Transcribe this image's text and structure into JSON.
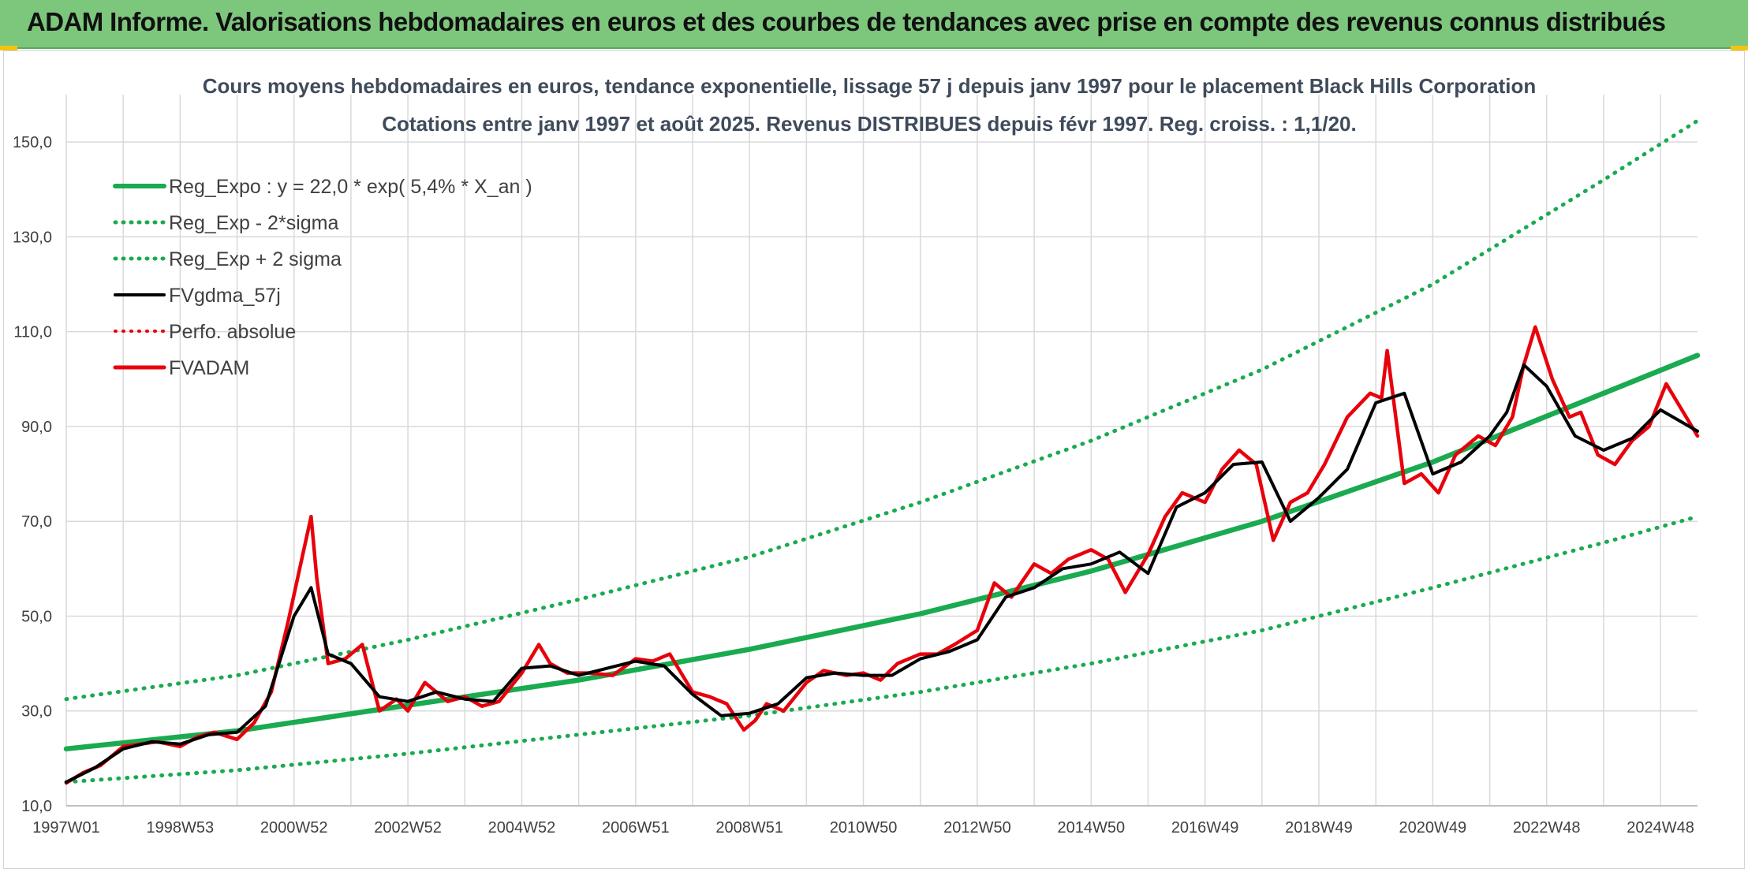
{
  "header": {
    "title": "ADAM Informe. Valorisations hebdomadaires en euros et des courbes de tendances avec prise en compte des revenus connus distribués"
  },
  "colors": {
    "banner": "#7dc77d",
    "trend": "#1aaa50",
    "price": "#e8000b",
    "average": "#000000",
    "grid": "#d9d9d9"
  },
  "chart_data": {
    "type": "line",
    "title_line1": "Cours moyens hebdomadaires en euros, tendance exponentielle, lissage 57 j depuis janv 1997 pour le placement Black Hills Corporation",
    "title_line2": "Cotations entre janv 1997 et août 2025. Revenus DISTRIBUES depuis févr 1997. Reg. croiss. : 1,1/20.",
    "xlabel": "",
    "ylabel": "",
    "xlim": [
      1997.0,
      2025.65
    ],
    "ylim": [
      10,
      160
    ],
    "yticks": [
      10,
      30,
      50,
      70,
      90,
      110,
      130,
      150
    ],
    "ytick_labels": [
      "10,0",
      "30,0",
      "50,0",
      "70,0",
      "90,0",
      "110,0",
      "130,0",
      "150,0"
    ],
    "xtick_labels": [
      "1997W01",
      "1998W53",
      "2000W52",
      "2002W52",
      "2004W52",
      "2006W51",
      "2008W51",
      "2010W50",
      "2012W50",
      "2014W50",
      "2016W49",
      "2018W49",
      "2020W49",
      "2022W48",
      "2024W48"
    ],
    "xtick_years": [
      1997.0,
      1999.0,
      2001.0,
      2003.0,
      2005.0,
      2007.0,
      2009.0,
      2011.0,
      2013.0,
      2015.0,
      2017.0,
      2019.0,
      2021.0,
      2023.0,
      2025.0
    ],
    "grid": true,
    "legend_position": "top-left",
    "legend": [
      {
        "label": "Reg_Expo : y = 22,0 * exp( 5,4% *  X_an )",
        "color": "#1aaa50",
        "style": "solid",
        "width": 6
      },
      {
        "label": "Reg_Exp - 2*sigma",
        "color": "#1aaa50",
        "style": "dotted",
        "width": 4
      },
      {
        "label": "Reg_Exp + 2 sigma",
        "color": "#1aaa50",
        "style": "dotted",
        "width": 4
      },
      {
        "label": "FVgdma_57j",
        "color": "#000000",
        "style": "solid",
        "width": 4
      },
      {
        "label": "Perfo. absolue",
        "color": "#e8000b",
        "style": "dotted",
        "width": 3
      },
      {
        "label": "FVADAM",
        "color": "#e8000b",
        "style": "solid",
        "width": 5
      }
    ],
    "series": [
      {
        "name": "Reg_Expo : y = 22,0 * exp( 5,4% *  X_an )",
        "style": "solid",
        "color": "#1aaa50",
        "x": [
          1997.0,
          2000.0,
          2003.0,
          2006.0,
          2009.0,
          2012.0,
          2015.0,
          2018.0,
          2021.0,
          2024.0,
          2025.65
        ],
        "y": [
          22.0,
          25.8,
          31.2,
          36.5,
          43.0,
          50.5,
          59.5,
          70.0,
          82.5,
          97.0,
          105.0
        ]
      },
      {
        "name": "Reg_Exp - 2*sigma",
        "style": "dotted",
        "color": "#1aaa50",
        "x": [
          1997.0,
          2000.0,
          2003.0,
          2006.0,
          2009.0,
          2012.0,
          2015.0,
          2018.0,
          2021.0,
          2024.0,
          2025.65
        ],
        "y": [
          15.0,
          17.5,
          21.0,
          25.0,
          29.0,
          34.0,
          40.0,
          47.0,
          56.0,
          65.5,
          71.0
        ]
      },
      {
        "name": "Reg_Exp + 2 sigma",
        "style": "dotted",
        "color": "#1aaa50",
        "x": [
          1997.0,
          2000.0,
          2003.0,
          2006.0,
          2009.0,
          2012.0,
          2015.0,
          2018.0,
          2021.0,
          2024.0,
          2025.65
        ],
        "y": [
          32.5,
          37.5,
          45.0,
          53.5,
          62.5,
          74.0,
          87.0,
          102.0,
          120.0,
          142.0,
          154.5
        ]
      },
      {
        "name": "FVgdma_57j",
        "style": "solid",
        "color": "#000000",
        "x": [
          1997.0,
          1997.5,
          1998.0,
          1998.5,
          1999.0,
          1999.5,
          2000.0,
          2000.5,
          2001.0,
          2001.3,
          2001.6,
          2002.0,
          2002.5,
          2003.0,
          2003.5,
          2004.0,
          2004.5,
          2005.0,
          2005.5,
          2006.0,
          2006.5,
          2007.0,
          2007.5,
          2008.0,
          2008.5,
          2009.0,
          2009.5,
          2010.0,
          2010.5,
          2011.0,
          2011.5,
          2012.0,
          2012.5,
          2013.0,
          2013.5,
          2014.0,
          2014.5,
          2015.0,
          2015.5,
          2016.0,
          2016.5,
          2017.0,
          2017.5,
          2018.0,
          2018.5,
          2019.0,
          2019.5,
          2020.0,
          2020.5,
          2021.0,
          2021.5,
          2022.0,
          2022.3,
          2022.6,
          2023.0,
          2023.5,
          2024.0,
          2024.5,
          2025.0,
          2025.65
        ],
        "y": [
          15.0,
          18.0,
          22.0,
          23.5,
          23.0,
          25.0,
          25.5,
          31.0,
          50.0,
          56.0,
          42.0,
          40.0,
          33.0,
          32.0,
          34.0,
          32.5,
          32.0,
          39.0,
          39.5,
          37.5,
          39.0,
          40.5,
          39.5,
          33.5,
          29.0,
          29.5,
          31.5,
          37.0,
          38.0,
          37.5,
          37.5,
          41.0,
          42.5,
          45.0,
          54.0,
          56.0,
          60.0,
          61.0,
          63.5,
          59.0,
          73.0,
          76.0,
          82.0,
          82.5,
          70.0,
          75.0,
          81.0,
          95.0,
          97.0,
          80.0,
          82.5,
          88.0,
          93.0,
          103.0,
          98.5,
          88.0,
          85.0,
          87.5,
          93.5,
          89.0
        ]
      },
      {
        "name": "FVADAM",
        "style": "solid",
        "color": "#e8000b",
        "x": [
          1997.0,
          1997.3,
          1997.6,
          1998.0,
          1998.3,
          1998.6,
          1999.0,
          1999.3,
          1999.6,
          2000.0,
          2000.3,
          2000.6,
          2000.9,
          2001.1,
          2001.3,
          2001.4,
          2001.6,
          2001.9,
          2002.2,
          2002.5,
          2002.8,
          2003.0,
          2003.3,
          2003.7,
          2004.0,
          2004.3,
          2004.6,
          2005.0,
          2005.3,
          2005.5,
          2005.8,
          2006.2,
          2006.6,
          2007.0,
          2007.3,
          2007.6,
          2008.0,
          2008.3,
          2008.6,
          2008.9,
          2009.1,
          2009.3,
          2009.6,
          2010.0,
          2010.3,
          2010.7,
          2011.0,
          2011.3,
          2011.6,
          2012.0,
          2012.3,
          2012.6,
          2013.0,
          2013.3,
          2013.6,
          2014.0,
          2014.3,
          2014.6,
          2015.0,
          2015.3,
          2015.6,
          2016.0,
          2016.3,
          2016.6,
          2017.0,
          2017.3,
          2017.6,
          2017.9,
          2018.2,
          2018.5,
          2018.8,
          2019.1,
          2019.5,
          2019.9,
          2020.1,
          2020.2,
          2020.5,
          2020.8,
          2021.1,
          2021.4,
          2021.8,
          2022.1,
          2022.4,
          2022.6,
          2022.8,
          2023.1,
          2023.4,
          2023.6,
          2023.9,
          2024.2,
          2024.5,
          2024.8,
          2025.1,
          2025.4,
          2025.65
        ],
        "y": [
          14.8,
          17.0,
          18.5,
          22.5,
          23.0,
          23.5,
          22.5,
          24.5,
          25.5,
          24.0,
          27.5,
          34.0,
          49.0,
          60.0,
          71.0,
          58.0,
          40.0,
          41.0,
          44.0,
          30.0,
          32.5,
          30.0,
          36.0,
          32.0,
          33.0,
          31.0,
          32.0,
          38.0,
          44.0,
          40.0,
          38.0,
          38.0,
          37.5,
          41.0,
          40.5,
          42.0,
          34.0,
          33.0,
          31.5,
          26.0,
          28.0,
          31.5,
          30.0,
          36.0,
          38.5,
          37.5,
          38.0,
          36.5,
          40.0,
          42.0,
          42.0,
          44.0,
          47.0,
          57.0,
          54.0,
          61.0,
          59.0,
          62.0,
          64.0,
          62.0,
          55.0,
          63.0,
          71.0,
          76.0,
          74.0,
          81.0,
          85.0,
          82.0,
          66.0,
          74.0,
          76.0,
          82.0,
          92.0,
          97.0,
          96.0,
          106.0,
          78.0,
          80.0,
          76.0,
          84.0,
          88.0,
          86.0,
          92.0,
          103.0,
          111.0,
          100.0,
          92.0,
          93.0,
          84.0,
          82.0,
          87.0,
          90.0,
          99.0,
          93.0,
          88.0
        ]
      }
    ]
  }
}
